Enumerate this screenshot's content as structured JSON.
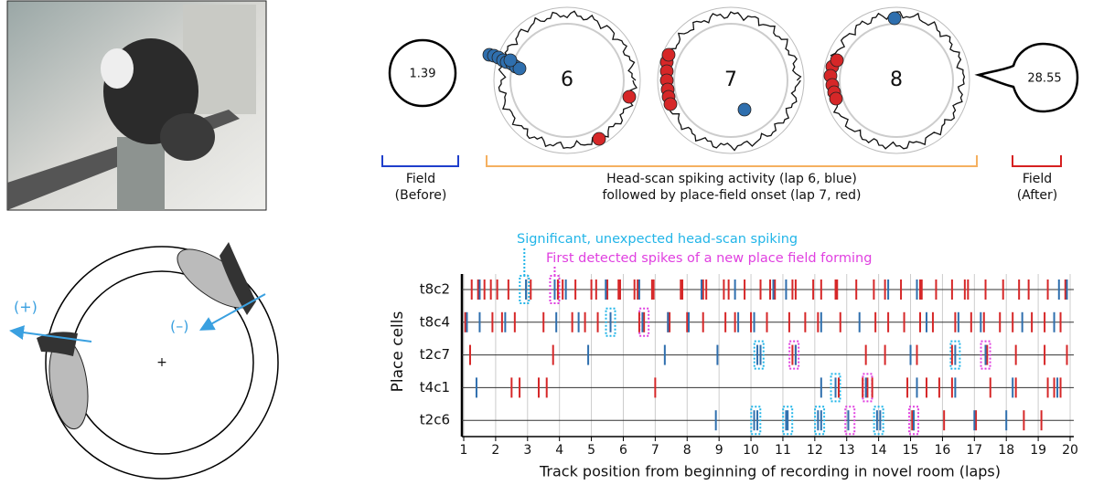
{
  "top_panels": {
    "field_before": "1.39",
    "laps": [
      "6",
      "7",
      "8"
    ],
    "field_after": "28.55",
    "bracket_before": [
      "Field",
      "(Before)"
    ],
    "bracket_middle": [
      "Head-scan spiking activity (lap 6, blue)",
      "followed by place-field onset (lap 7, red)"
    ],
    "bracket_after": [
      "Field",
      "(After)"
    ]
  },
  "diagram": {
    "plus": "(+)",
    "minus": "(–)",
    "center": "+"
  },
  "chart_data": {
    "type": "raster",
    "xlabel": "Track position from beginning of recording in novel room (laps)",
    "ylabel": "Place cells",
    "annotations": [
      "Significant, unexpected head-scan spiking",
      "First detected spikes of a new place field forming"
    ],
    "xlim": [
      1,
      20
    ],
    "xticks": [
      1,
      2,
      3,
      4,
      5,
      6,
      7,
      8,
      9,
      10,
      11,
      12,
      13,
      14,
      15,
      16,
      17,
      18,
      19,
      20
    ],
    "grid": true,
    "colors": {
      "red": "#d62728",
      "blue": "#2f6fae",
      "scan": "#22b5e8",
      "onset": "#e040e0"
    },
    "cells": [
      {
        "label": "t8c2",
        "red": [
          1.25,
          1.45,
          1.65,
          1.85,
          2.05,
          2.4,
          3.1,
          3.95,
          4.1,
          4.5,
          5.0,
          5.15,
          5.5,
          5.85,
          5.9,
          6.35,
          6.45,
          6.9,
          6.95,
          7.8,
          7.85,
          8.5,
          8.6,
          9.15,
          9.3,
          9.8,
          10.3,
          10.6,
          10.75,
          11.3,
          11.4,
          11.95,
          12.2,
          12.65,
          12.7,
          13.3,
          13.85,
          14.2,
          14.7,
          15.3,
          15.35,
          15.8,
          16.3,
          16.7,
          16.8,
          17.35,
          17.9,
          18.4,
          18.7,
          19.3,
          19.85,
          19.9
        ],
        "blue": [
          1.5,
          2.95,
          3.85,
          4.2,
          5.45,
          6.5,
          8.45,
          9.5,
          10.7,
          11.1,
          14.3,
          15.2,
          19.65,
          19.9
        ],
        "scan": [
          2.9
        ],
        "onset": [
          3.85
        ]
      },
      {
        "label": "t8c4",
        "red": [
          1.05,
          1.9,
          2.2,
          2.6,
          3.5,
          4.4,
          4.8,
          5.2,
          6.5,
          6.65,
          7.4,
          7.45,
          8.0,
          8.5,
          9.2,
          9.5,
          10.0,
          10.5,
          11.2,
          11.7,
          12.1,
          12.8,
          13.9,
          14.3,
          14.8,
          15.3,
          15.7,
          16.4,
          16.9,
          17.3,
          17.8,
          18.2,
          18.8,
          19.2,
          19.7
        ],
        "blue": [
          1.1,
          1.5,
          2.3,
          3.9,
          4.6,
          5.6,
          6.6,
          7.4,
          8.05,
          9.6,
          10.1,
          12.2,
          13.4,
          15.5,
          16.5,
          17.2,
          18.5,
          19.5
        ],
        "scan": [
          5.6
        ],
        "onset": [
          6.65
        ]
      },
      {
        "label": "t2c7",
        "red": [
          1.2,
          3.8,
          11.3,
          11.4,
          13.6,
          14.2,
          15.2,
          16.3,
          17.35,
          17.4,
          18.3,
          19.2,
          19.9
        ],
        "blue": [
          4.9,
          7.3,
          8.95,
          10.2,
          10.3,
          11.4,
          15.0,
          16.4,
          17.35
        ],
        "scan": [
          10.25,
          16.4
        ],
        "onset": [
          11.35,
          17.35
        ]
      },
      {
        "label": "t4c1",
        "red": [
          2.5,
          2.75,
          3.35,
          3.6,
          7.0,
          12.75,
          13.5,
          13.65,
          13.8,
          14.9,
          15.5,
          15.9,
          16.3,
          17.5,
          18.3,
          19.3,
          19.5,
          19.7
        ],
        "blue": [
          1.4,
          12.2,
          12.65,
          13.6,
          15.2,
          16.4,
          18.2,
          19.6
        ],
        "scan": [
          12.65
        ],
        "onset": [
          13.65
        ]
      },
      {
        "label": "t2c6",
        "red": [
          15.05,
          15.1,
          16.05,
          17.05,
          18.55,
          19.1
        ],
        "blue": [
          8.9,
          10.1,
          10.2,
          11.1,
          11.15,
          12.1,
          12.2,
          13.05,
          13.95,
          14.05,
          15.1,
          17.0,
          18.0
        ],
        "scan": [
          10.15,
          11.15,
          12.15,
          14.0
        ],
        "onset": [
          13.1,
          15.1
        ]
      }
    ]
  }
}
